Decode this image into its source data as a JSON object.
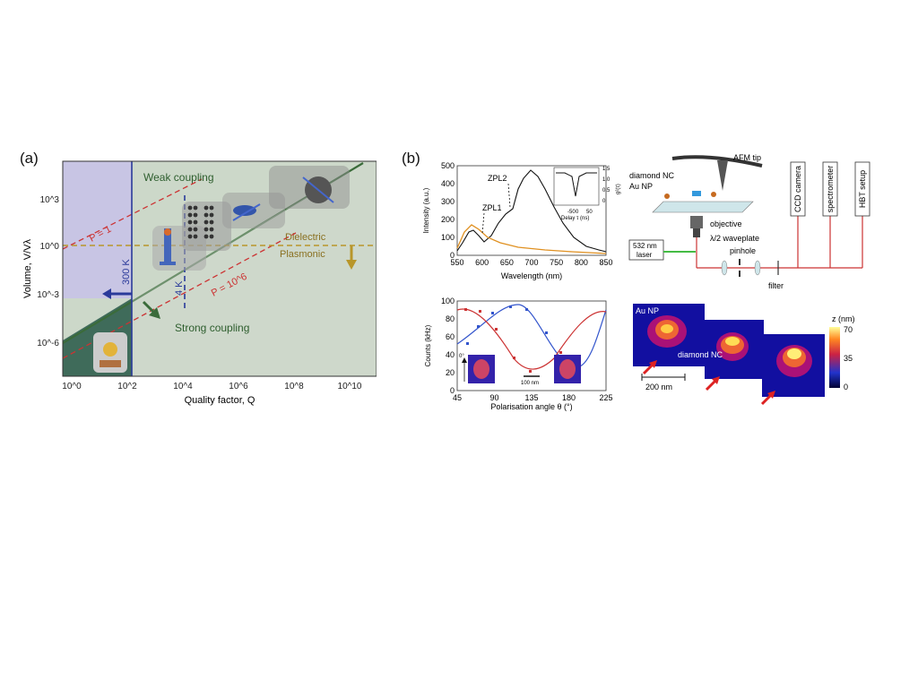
{
  "panel_a": {
    "label": "(a)",
    "xlabel": "Quality factor, Q",
    "ylabel": "Volume, V/Vλ",
    "x_ticks": [
      "10^0",
      "10^2",
      "10^4",
      "10^6",
      "10^8",
      "10^10"
    ],
    "y_ticks": [
      "10^3",
      "10^0",
      "10^-3",
      "10^-6"
    ],
    "regions": {
      "weak": "Weak coupling",
      "strong": "Strong coupling",
      "dielectric": "Dielectric",
      "plasmonic": "Plasmonic"
    },
    "temps": {
      "t300": "300 K",
      "t4": "4 K"
    },
    "purcell": {
      "p1": "P = 1",
      "p2": "P = 10^6"
    },
    "colors": {
      "weak_bg": "#ccd8c9",
      "strong_bg": "#3f6b5a",
      "room_bg": "#c8c5e4",
      "blue": "#2a3a9a",
      "red": "#cc3333",
      "gold": "#b8962a",
      "green": "#3a6b3a"
    }
  },
  "panel_b": {
    "label": "(b)",
    "spectrum": {
      "ylabel": "Intensity (a.u.)",
      "xlabel": "Wavelength (nm)",
      "x_ticks": [
        "550",
        "600",
        "650",
        "700",
        "750",
        "800",
        "850"
      ],
      "y_ticks": [
        "0",
        "100",
        "200",
        "300",
        "400",
        "500"
      ],
      "zpl1": "ZPL1",
      "zpl2": "ZPL2",
      "inset_xlabel": "Delay τ (ns)",
      "inset_x_ticks": [
        "-50",
        "0",
        "50"
      ],
      "inset_right_ticks": [
        "1.5",
        "1.0",
        "0.5",
        "0"
      ],
      "inset_ylabel": "g²(τ)"
    },
    "polar": {
      "ylabel": "Counts (kHz)",
      "xlabel": "Polarisation angle θ (°)",
      "x_ticks": [
        "45",
        "90",
        "135",
        "180",
        "225"
      ],
      "y_ticks": [
        "0",
        "20",
        "40",
        "60",
        "80",
        "100"
      ],
      "inset_angle": "0°",
      "scale": "100 nm"
    },
    "setup": {
      "afm": "AFM tip",
      "nc": "diamond NC",
      "np": "Au NP",
      "objective": "objective",
      "waveplate": "λ/2 waveplate",
      "laser": "532 nm\nlaser",
      "pinhole": "pinhole",
      "filter": "filter",
      "ccd": "CCD camera",
      "spectrometer": "spectrometer",
      "hbt": "HBT setup"
    },
    "afm_images": {
      "np": "Au NP",
      "nc": "diamond NC",
      "scale": "200 nm",
      "cbar_title": "z (nm)",
      "cbar_ticks": [
        "70",
        "35",
        "0"
      ]
    }
  }
}
